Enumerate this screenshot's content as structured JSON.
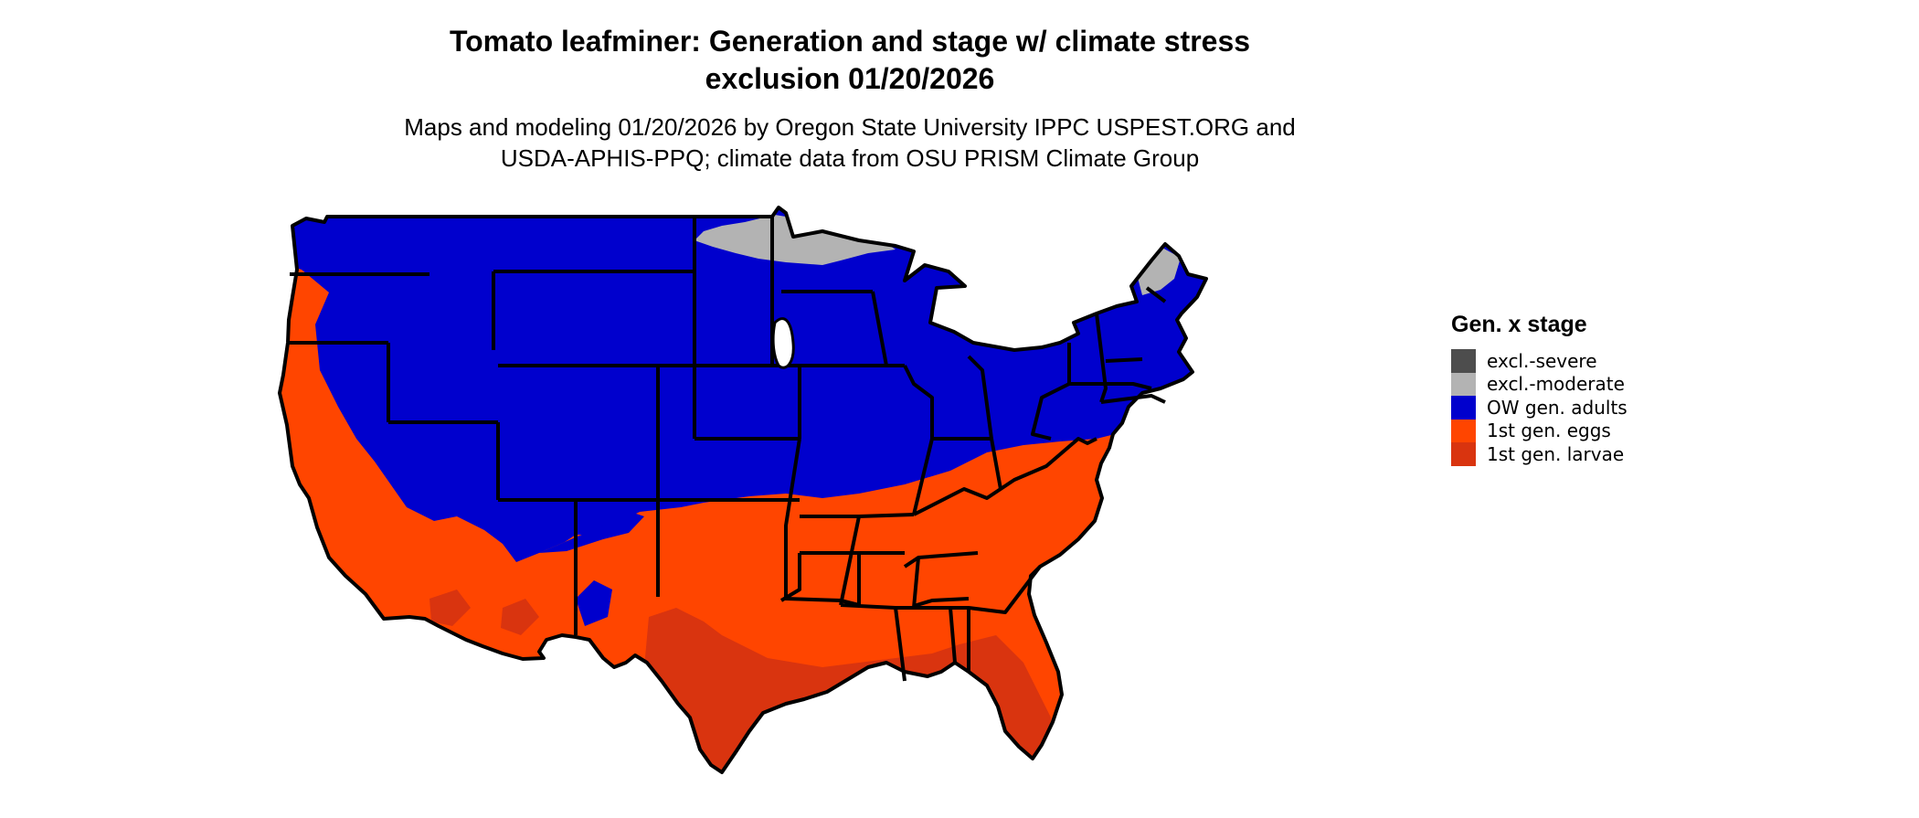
{
  "title": {
    "line1": "Tomato leafminer: Generation and stage w/ climate stress",
    "line2": "exclusion 01/20/2026"
  },
  "subtitle": {
    "line1": "Maps and modeling 01/20/2026 by Oregon State University IPPC USPEST.ORG and",
    "line2": "USDA-APHIS-PPQ; climate data from OSU PRISM Climate Group"
  },
  "legend": {
    "title": "Gen. x stage",
    "items": [
      {
        "label": "excl.-severe",
        "color": "#4d4d4d"
      },
      {
        "label": "excl.-moderate",
        "color": "#b3b3b3"
      },
      {
        "label": "OW gen. adults",
        "color": "#0000cd"
      },
      {
        "label": "1st gen. eggs",
        "color": "#ff4500"
      },
      {
        "label": "1st gen. larvae",
        "color": "#d9340f"
      }
    ]
  },
  "map_colors": {
    "adults": "#0000cd",
    "eggs": "#ff4500",
    "larvae": "#d9340f",
    "moderate": "#b3b3b3",
    "boundary": "#000000"
  }
}
